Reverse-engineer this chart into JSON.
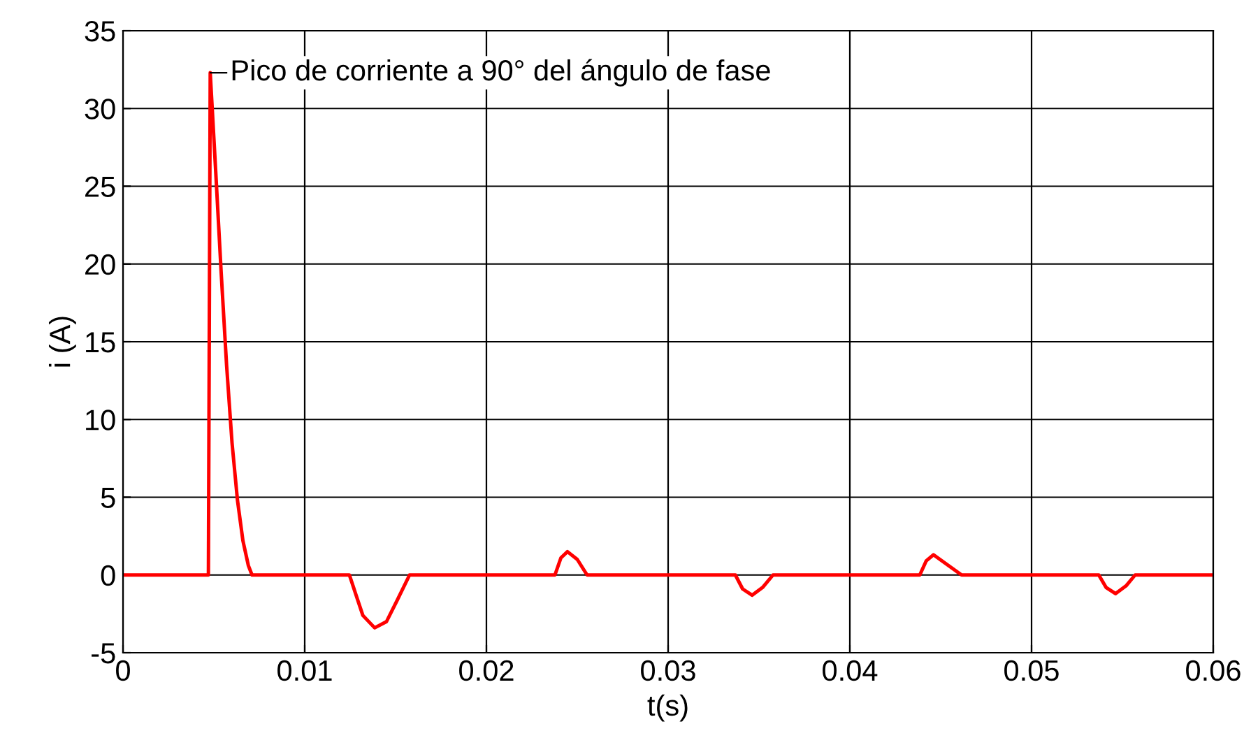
{
  "chart_data": {
    "type": "line",
    "xlabel": "t(s)",
    "ylabel": "i (A)",
    "xlim": [
      0,
      0.06
    ],
    "xticks": [
      0,
      0.01,
      0.02,
      0.03,
      0.04,
      0.05,
      0.06
    ],
    "ylim": [
      -5,
      35
    ],
    "yticks": [
      -5,
      0,
      5,
      10,
      15,
      20,
      25,
      30,
      35
    ],
    "grid": true,
    "marker": "none",
    "line_style": "solid",
    "series": [
      {
        "color": "#ff0000",
        "x": [
          0,
          0.0047,
          0.0048,
          0.0051,
          0.0054,
          0.0057,
          0.006,
          0.0063,
          0.0066,
          0.0069,
          0.0071,
          0.01246,
          0.0128,
          0.0132,
          0.01385,
          0.0145,
          0.0151,
          0.01577,
          0.02377,
          0.0241,
          0.02446,
          0.025,
          0.02554,
          0.0337,
          0.0341,
          0.03462,
          0.0352,
          0.03577,
          0.04385,
          0.0442,
          0.0446,
          0.0452,
          0.04615,
          0.0537,
          0.0541,
          0.05462,
          0.0552,
          0.0557,
          0.06
        ],
        "values": [
          0,
          0,
          32.3,
          26,
          19.5,
          13.5,
          8.5,
          4.8,
          2.2,
          0.6,
          0,
          0,
          -1.2,
          -2.6,
          -3.4,
          -3.0,
          -1.6,
          0,
          0,
          1.1,
          1.5,
          1.0,
          0,
          0,
          -0.9,
          -1.3,
          -0.8,
          0,
          0,
          0.9,
          1.3,
          0.8,
          0,
          0,
          -0.8,
          -1.2,
          -0.7,
          0,
          0
        ]
      }
    ],
    "annotations": [
      {
        "text": "Pico de corriente a 90° del ángulo de fase",
        "x": 0.0048,
        "y": 32.3
      }
    ]
  }
}
